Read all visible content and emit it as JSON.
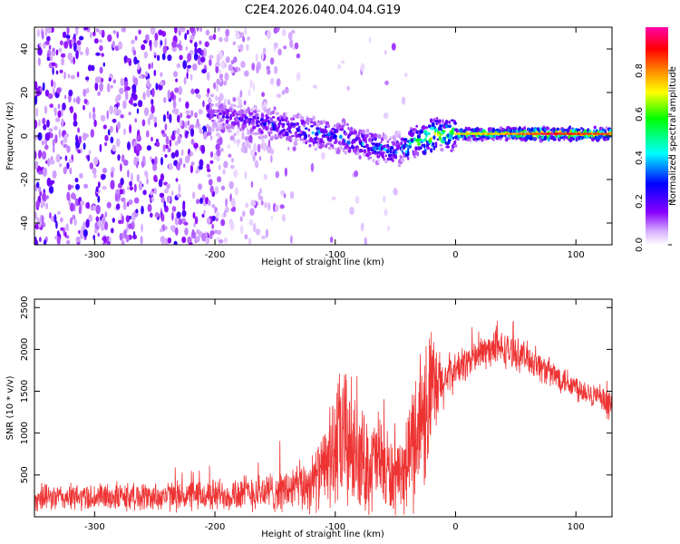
{
  "title": "C2E4.2026.040.04.04.G19",
  "chart_data": [
    {
      "type": "heatmap",
      "xlabel": "Height of straight line (km)",
      "ylabel": "Frequency (Hz)",
      "xlim": [
        -350,
        130
      ],
      "ylim": [
        -50,
        50
      ],
      "xticks": [
        -300,
        -200,
        -100,
        0,
        100
      ],
      "yticks": [
        -40,
        -20,
        0,
        20,
        40
      ],
      "colorbar": {
        "label": "Normalized spectral amplitude",
        "range": [
          0.0,
          1.0
        ],
        "ticks": [
          0.0,
          0.2,
          0.4,
          0.6,
          0.8
        ],
        "colormap": [
          "#ffffff",
          "#cc99ff",
          "#8800ff",
          "#0000ff",
          "#00ffff",
          "#00ff00",
          "#ffff00",
          "#ff8800",
          "#ff0000",
          "#ff00aa"
        ]
      },
      "ridge": {
        "x": [
          -200,
          -180,
          -160,
          -140,
          -120,
          -100,
          -80,
          -60,
          -50,
          -40,
          -30,
          -20,
          -10,
          0,
          20,
          40,
          60,
          80,
          100,
          130
        ],
        "freq_hz": [
          10,
          8,
          6,
          4,
          2,
          0,
          -3,
          -6,
          -8,
          -4,
          -2,
          0,
          1,
          1,
          1,
          1,
          1,
          1,
          1,
          1
        ],
        "amplitude": [
          0.25,
          0.3,
          0.32,
          0.35,
          0.38,
          0.4,
          0.42,
          0.4,
          0.35,
          0.55,
          0.6,
          0.7,
          0.65,
          0.6,
          0.62,
          0.65,
          0.75,
          0.85,
          0.8,
          0.7
        ]
      }
    },
    {
      "type": "line",
      "xlabel": "Height of straight line (km)",
      "ylabel": "SNR (10 * v/v)",
      "xlim": [
        -350,
        130
      ],
      "ylim": [
        0,
        2600
      ],
      "xticks": [
        -300,
        -200,
        -100,
        0,
        100
      ],
      "yticks": [
        500,
        1000,
        1500,
        2000,
        2500
      ],
      "series": [
        {
          "name": "SNR",
          "color": "#ee3333",
          "x": [
            -350,
            -330,
            -310,
            -290,
            -270,
            -250,
            -230,
            -210,
            -200,
            -190,
            -180,
            -170,
            -160,
            -150,
            -140,
            -130,
            -120,
            -110,
            -105,
            -100,
            -95,
            -90,
            -85,
            -80,
            -75,
            -70,
            -65,
            -60,
            -55,
            -50,
            -45,
            -40,
            -35,
            -30,
            -25,
            -22,
            -20,
            -15,
            -10,
            -5,
            0,
            10,
            20,
            30,
            40,
            50,
            60,
            70,
            80,
            90,
            100,
            110,
            120,
            130
          ],
          "y_mid": [
            220,
            230,
            230,
            240,
            240,
            240,
            250,
            250,
            260,
            270,
            280,
            290,
            300,
            300,
            320,
            350,
            400,
            550,
            700,
            800,
            900,
            950,
            800,
            700,
            650,
            600,
            700,
            600,
            500,
            450,
            400,
            700,
            900,
            1200,
            1300,
            1400,
            1450,
            1500,
            1600,
            1700,
            1750,
            1850,
            1950,
            2000,
            2000,
            1950,
            1900,
            1800,
            1700,
            1650,
            1550,
            1500,
            1400,
            1300
          ],
          "y_spread": [
            180,
            180,
            190,
            190,
            200,
            200,
            210,
            220,
            230,
            240,
            250,
            260,
            270,
            280,
            300,
            350,
            400,
            500,
            700,
            900,
            1000,
            1100,
            800,
            700,
            700,
            650,
            700,
            650,
            600,
            500,
            450,
            700,
            900,
            1000,
            1100,
            1100,
            900,
            600,
            400,
            300,
            250,
            250,
            250,
            250,
            250,
            220,
            220,
            220,
            200,
            200,
            200,
            180,
            180,
            200
          ]
        }
      ]
    }
  ]
}
